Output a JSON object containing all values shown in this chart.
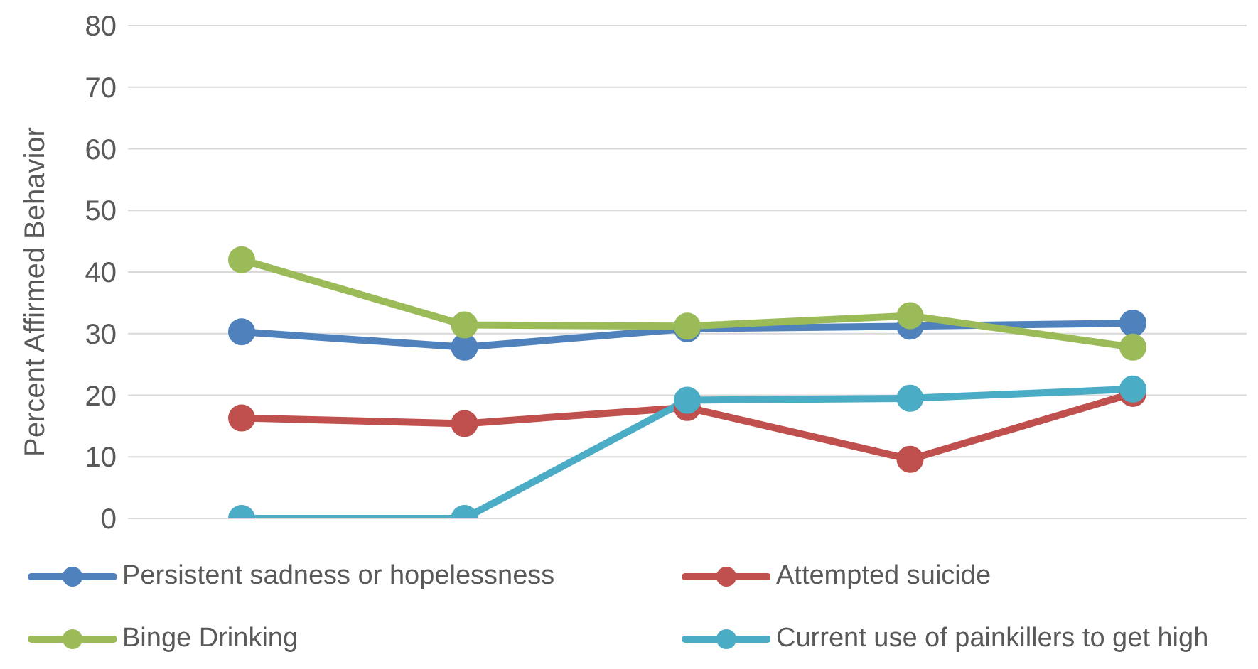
{
  "chart_data": {
    "type": "line",
    "ylabel": "Percent Affirmed Behavior",
    "categories": [
      null,
      null,
      null,
      null,
      null
    ],
    "series": [
      {
        "name": "Persistent sadness or hopelessness",
        "color": "#4f81bd",
        "values": [
          30.3,
          27.8,
          30.8,
          31.2,
          31.7
        ]
      },
      {
        "name": "Attempted suicide",
        "color": "#c0504d",
        "values": [
          16.3,
          15.4,
          18,
          9.6,
          20.3
        ]
      },
      {
        "name": "Binge Drinking",
        "color": "#9bbb59",
        "values": [
          42,
          31.4,
          31.2,
          32.9,
          27.8
        ]
      },
      {
        "name": "Current use of painkillers to get high",
        "color": "#4bacc6",
        "values": [
          0,
          0,
          19.2,
          19.5,
          21
        ]
      }
    ],
    "ylim": [
      0,
      80
    ],
    "yticks": [
      0,
      10,
      20,
      30,
      40,
      50,
      60,
      70,
      80
    ],
    "grid": "y",
    "legend": "bottom",
    "marker": "circle",
    "line_style": "solid"
  }
}
